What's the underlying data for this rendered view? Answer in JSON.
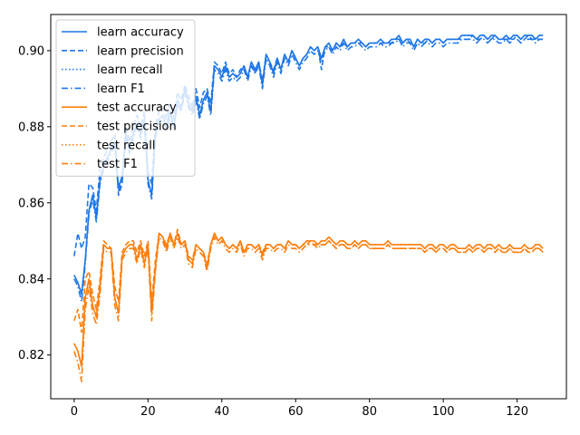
{
  "chart_data": {
    "type": "line",
    "title": "",
    "xlabel": "",
    "ylabel": "",
    "xlim": [
      -6.35,
      133.35
    ],
    "ylim": [
      0.8085,
      0.9095
    ],
    "xticks": [
      0,
      20,
      40,
      60,
      80,
      100,
      120
    ],
    "yticks": [
      0.82,
      0.84,
      0.86,
      0.88,
      0.9
    ],
    "ytick_labels": [
      "0.82",
      "0.84",
      "0.86",
      "0.88",
      "0.90"
    ],
    "grid": false,
    "legend_position": "top-left",
    "colors": {
      "learn": "#1f77e8",
      "test": "#ff7f0e"
    },
    "x_start": 0,
    "series": [
      {
        "name": "learn accuracy",
        "group": "learn",
        "style": "solid",
        "values": [
          0.841,
          0.839,
          0.836,
          0.845,
          0.858,
          0.862,
          0.856,
          0.866,
          0.87,
          0.872,
          0.874,
          0.876,
          0.864,
          0.867,
          0.878,
          0.874,
          0.878,
          0.881,
          0.878,
          0.882,
          0.866,
          0.862,
          0.878,
          0.882,
          0.883,
          0.88,
          0.884,
          0.88,
          0.887,
          0.885,
          0.89,
          0.886,
          0.884,
          0.888,
          0.883,
          0.887,
          0.889,
          0.884,
          0.896,
          0.895,
          0.893,
          0.896,
          0.893,
          0.894,
          0.893,
          0.894,
          0.896,
          0.893,
          0.897,
          0.895,
          0.897,
          0.891,
          0.899,
          0.897,
          0.894,
          0.898,
          0.895,
          0.899,
          0.897,
          0.9,
          0.898,
          0.896,
          0.898,
          0.899,
          0.901,
          0.9,
          0.901,
          0.898,
          0.901,
          0.902,
          0.9,
          0.902,
          0.901,
          0.903,
          0.901,
          0.902,
          0.902,
          0.903,
          0.902,
          0.901,
          0.902,
          0.902,
          0.902,
          0.903,
          0.902,
          0.902,
          0.903,
          0.903,
          0.904,
          0.902,
          0.903,
          0.903,
          0.901,
          0.903,
          0.902,
          0.903,
          0.903,
          0.902,
          0.903,
          0.903,
          0.902,
          0.903,
          0.903,
          0.903,
          0.903,
          0.904,
          0.904,
          0.904,
          0.904,
          0.903,
          0.904,
          0.904,
          0.903,
          0.904,
          0.904,
          0.903,
          0.903,
          0.904,
          0.903,
          0.904,
          0.904,
          0.903,
          0.904,
          0.904,
          0.904,
          0.903,
          0.904,
          0.904
        ]
      },
      {
        "name": "learn precision",
        "group": "learn",
        "style": "dashed",
        "values": [
          0.846,
          0.852,
          0.848,
          0.851,
          0.865,
          0.864,
          0.858,
          0.869,
          0.872,
          0.874,
          0.876,
          0.878,
          0.862,
          0.865,
          0.88,
          0.876,
          0.88,
          0.883,
          0.88,
          0.884,
          0.868,
          0.865,
          0.88,
          0.884,
          0.885,
          0.882,
          0.886,
          0.882,
          0.889,
          0.887,
          0.891,
          0.888,
          0.885,
          0.89,
          0.885,
          0.889,
          0.89,
          0.886,
          0.897,
          0.896,
          0.894,
          0.897,
          0.894,
          0.895,
          0.893,
          0.895,
          0.896,
          0.893,
          0.897,
          0.894,
          0.897,
          0.892,
          0.899,
          0.897,
          0.895,
          0.898,
          0.895,
          0.899,
          0.897,
          0.9,
          0.898,
          0.896,
          0.898,
          0.899,
          0.901,
          0.9,
          0.901,
          0.895,
          0.901,
          0.901,
          0.9,
          0.902,
          0.901,
          0.902,
          0.901,
          0.902,
          0.902,
          0.902,
          0.902,
          0.901,
          0.902,
          0.902,
          0.902,
          0.902,
          0.902,
          0.902,
          0.902,
          0.903,
          0.903,
          0.902,
          0.903,
          0.902,
          0.901,
          0.903,
          0.902,
          0.902,
          0.903,
          0.902,
          0.903,
          0.903,
          0.902,
          0.903,
          0.903,
          0.903,
          0.903,
          0.903,
          0.903,
          0.903,
          0.904,
          0.903,
          0.903,
          0.904,
          0.903,
          0.903,
          0.904,
          0.903,
          0.903,
          0.903,
          0.903,
          0.903,
          0.904,
          0.903,
          0.903,
          0.904,
          0.903,
          0.903,
          0.903,
          0.903
        ]
      },
      {
        "name": "learn recall",
        "group": "learn",
        "style": "dotted",
        "values": [
          0.841,
          0.839,
          0.836,
          0.845,
          0.858,
          0.862,
          0.856,
          0.866,
          0.87,
          0.872,
          0.874,
          0.876,
          0.864,
          0.867,
          0.878,
          0.874,
          0.878,
          0.881,
          0.878,
          0.882,
          0.866,
          0.862,
          0.878,
          0.882,
          0.883,
          0.88,
          0.884,
          0.88,
          0.887,
          0.885,
          0.89,
          0.886,
          0.884,
          0.888,
          0.883,
          0.887,
          0.889,
          0.884,
          0.896,
          0.895,
          0.893,
          0.896,
          0.893,
          0.894,
          0.893,
          0.894,
          0.896,
          0.893,
          0.897,
          0.895,
          0.897,
          0.891,
          0.899,
          0.897,
          0.894,
          0.898,
          0.895,
          0.899,
          0.897,
          0.9,
          0.898,
          0.896,
          0.898,
          0.899,
          0.901,
          0.9,
          0.901,
          0.898,
          0.901,
          0.902,
          0.9,
          0.902,
          0.901,
          0.903,
          0.901,
          0.902,
          0.902,
          0.903,
          0.902,
          0.901,
          0.902,
          0.902,
          0.902,
          0.903,
          0.902,
          0.902,
          0.903,
          0.903,
          0.904,
          0.902,
          0.903,
          0.903,
          0.901,
          0.903,
          0.902,
          0.903,
          0.903,
          0.902,
          0.903,
          0.903,
          0.902,
          0.903,
          0.903,
          0.903,
          0.903,
          0.904,
          0.904,
          0.904,
          0.904,
          0.903,
          0.904,
          0.904,
          0.903,
          0.904,
          0.904,
          0.903,
          0.903,
          0.904,
          0.903,
          0.904,
          0.904,
          0.903,
          0.904,
          0.904,
          0.904,
          0.903,
          0.904,
          0.904
        ]
      },
      {
        "name": "learn F1",
        "group": "learn",
        "style": "dashdot",
        "values": [
          0.84,
          0.838,
          0.834,
          0.844,
          0.857,
          0.861,
          0.855,
          0.865,
          0.869,
          0.871,
          0.873,
          0.875,
          0.863,
          0.866,
          0.877,
          0.873,
          0.877,
          0.88,
          0.877,
          0.881,
          0.865,
          0.861,
          0.877,
          0.881,
          0.882,
          0.879,
          0.883,
          0.879,
          0.886,
          0.884,
          0.889,
          0.885,
          0.883,
          0.887,
          0.882,
          0.886,
          0.888,
          0.883,
          0.895,
          0.894,
          0.892,
          0.895,
          0.892,
          0.893,
          0.892,
          0.893,
          0.895,
          0.892,
          0.896,
          0.894,
          0.896,
          0.89,
          0.898,
          0.896,
          0.893,
          0.897,
          0.894,
          0.898,
          0.896,
          0.899,
          0.897,
          0.895,
          0.897,
          0.898,
          0.9,
          0.899,
          0.9,
          0.897,
          0.9,
          0.901,
          0.899,
          0.901,
          0.9,
          0.902,
          0.9,
          0.901,
          0.901,
          0.902,
          0.901,
          0.9,
          0.901,
          0.901,
          0.901,
          0.902,
          0.901,
          0.901,
          0.902,
          0.902,
          0.903,
          0.901,
          0.902,
          0.902,
          0.9,
          0.902,
          0.901,
          0.902,
          0.902,
          0.901,
          0.902,
          0.902,
          0.901,
          0.902,
          0.902,
          0.902,
          0.902,
          0.903,
          0.903,
          0.903,
          0.903,
          0.902,
          0.903,
          0.903,
          0.902,
          0.903,
          0.903,
          0.902,
          0.902,
          0.903,
          0.902,
          0.903,
          0.903,
          0.902,
          0.903,
          0.903,
          0.903,
          0.902,
          0.903,
          0.903
        ]
      },
      {
        "name": "test accuracy",
        "group": "test",
        "style": "solid",
        "values": [
          0.823,
          0.821,
          0.817,
          0.835,
          0.84,
          0.833,
          0.83,
          0.838,
          0.849,
          0.848,
          0.848,
          0.835,
          0.831,
          0.846,
          0.848,
          0.849,
          0.849,
          0.845,
          0.849,
          0.844,
          0.849,
          0.831,
          0.843,
          0.852,
          0.851,
          0.848,
          0.852,
          0.849,
          0.852,
          0.849,
          0.85,
          0.845,
          0.844,
          0.849,
          0.848,
          0.847,
          0.843,
          0.849,
          0.852,
          0.85,
          0.851,
          0.849,
          0.848,
          0.849,
          0.848,
          0.85,
          0.847,
          0.849,
          0.849,
          0.848,
          0.849,
          0.846,
          0.849,
          0.849,
          0.848,
          0.849,
          0.849,
          0.848,
          0.85,
          0.849,
          0.849,
          0.848,
          0.849,
          0.85,
          0.85,
          0.85,
          0.849,
          0.85,
          0.85,
          0.851,
          0.85,
          0.849,
          0.85,
          0.85,
          0.849,
          0.849,
          0.85,
          0.849,
          0.85,
          0.85,
          0.849,
          0.849,
          0.849,
          0.849,
          0.849,
          0.85,
          0.849,
          0.849,
          0.849,
          0.849,
          0.849,
          0.849,
          0.849,
          0.849,
          0.849,
          0.848,
          0.849,
          0.849,
          0.848,
          0.849,
          0.849,
          0.848,
          0.849,
          0.849,
          0.848,
          0.848,
          0.848,
          0.849,
          0.848,
          0.849,
          0.849,
          0.848,
          0.849,
          0.849,
          0.848,
          0.849,
          0.848,
          0.848,
          0.849,
          0.848,
          0.848,
          0.848,
          0.849,
          0.848,
          0.848,
          0.849,
          0.849,
          0.848
        ]
      },
      {
        "name": "test precision",
        "group": "test",
        "style": "dashed",
        "values": [
          0.829,
          0.832,
          0.826,
          0.84,
          0.842,
          0.836,
          0.832,
          0.84,
          0.85,
          0.849,
          0.848,
          0.838,
          0.834,
          0.847,
          0.849,
          0.85,
          0.85,
          0.847,
          0.85,
          0.846,
          0.85,
          0.834,
          0.845,
          0.852,
          0.851,
          0.849,
          0.852,
          0.849,
          0.853,
          0.849,
          0.85,
          0.846,
          0.845,
          0.849,
          0.848,
          0.847,
          0.844,
          0.849,
          0.852,
          0.85,
          0.851,
          0.849,
          0.848,
          0.849,
          0.848,
          0.85,
          0.847,
          0.849,
          0.849,
          0.848,
          0.849,
          0.847,
          0.849,
          0.849,
          0.848,
          0.849,
          0.849,
          0.848,
          0.85,
          0.849,
          0.849,
          0.848,
          0.849,
          0.849,
          0.85,
          0.849,
          0.849,
          0.849,
          0.849,
          0.85,
          0.849,
          0.848,
          0.849,
          0.849,
          0.848,
          0.848,
          0.849,
          0.848,
          0.849,
          0.849,
          0.848,
          0.848,
          0.848,
          0.848,
          0.848,
          0.849,
          0.848,
          0.848,
          0.848,
          0.848,
          0.848,
          0.848,
          0.848,
          0.848,
          0.848,
          0.847,
          0.848,
          0.848,
          0.847,
          0.848,
          0.848,
          0.847,
          0.848,
          0.848,
          0.847,
          0.847,
          0.847,
          0.848,
          0.847,
          0.848,
          0.848,
          0.847,
          0.848,
          0.848,
          0.847,
          0.848,
          0.847,
          0.847,
          0.848,
          0.847,
          0.847,
          0.847,
          0.848,
          0.847,
          0.847,
          0.848,
          0.848,
          0.847
        ]
      },
      {
        "name": "test recall",
        "group": "test",
        "style": "dotted",
        "values": [
          0.823,
          0.821,
          0.817,
          0.835,
          0.84,
          0.833,
          0.83,
          0.838,
          0.849,
          0.848,
          0.848,
          0.835,
          0.831,
          0.846,
          0.848,
          0.849,
          0.849,
          0.845,
          0.849,
          0.844,
          0.849,
          0.831,
          0.843,
          0.852,
          0.851,
          0.848,
          0.852,
          0.849,
          0.852,
          0.849,
          0.85,
          0.845,
          0.844,
          0.849,
          0.848,
          0.847,
          0.843,
          0.849,
          0.852,
          0.85,
          0.851,
          0.849,
          0.848,
          0.849,
          0.848,
          0.85,
          0.847,
          0.849,
          0.849,
          0.848,
          0.849,
          0.846,
          0.849,
          0.849,
          0.848,
          0.849,
          0.849,
          0.848,
          0.85,
          0.849,
          0.849,
          0.848,
          0.849,
          0.85,
          0.85,
          0.85,
          0.849,
          0.85,
          0.85,
          0.851,
          0.85,
          0.849,
          0.85,
          0.85,
          0.849,
          0.849,
          0.85,
          0.849,
          0.85,
          0.85,
          0.849,
          0.849,
          0.849,
          0.849,
          0.849,
          0.85,
          0.849,
          0.849,
          0.849,
          0.849,
          0.849,
          0.849,
          0.849,
          0.849,
          0.849,
          0.848,
          0.849,
          0.849,
          0.848,
          0.849,
          0.849,
          0.848,
          0.849,
          0.849,
          0.848,
          0.848,
          0.848,
          0.849,
          0.848,
          0.849,
          0.849,
          0.848,
          0.849,
          0.849,
          0.848,
          0.849,
          0.848,
          0.848,
          0.849,
          0.848,
          0.848,
          0.848,
          0.849,
          0.848,
          0.848,
          0.849,
          0.849,
          0.848
        ]
      },
      {
        "name": "test F1",
        "group": "test",
        "style": "dashdot",
        "values": [
          0.821,
          0.818,
          0.813,
          0.832,
          0.838,
          0.831,
          0.828,
          0.836,
          0.848,
          0.847,
          0.847,
          0.833,
          0.829,
          0.845,
          0.847,
          0.848,
          0.848,
          0.844,
          0.848,
          0.843,
          0.848,
          0.829,
          0.842,
          0.851,
          0.85,
          0.847,
          0.851,
          0.848,
          0.851,
          0.848,
          0.849,
          0.844,
          0.843,
          0.848,
          0.847,
          0.846,
          0.842,
          0.848,
          0.851,
          0.849,
          0.85,
          0.848,
          0.847,
          0.848,
          0.847,
          0.849,
          0.846,
          0.848,
          0.848,
          0.847,
          0.848,
          0.845,
          0.848,
          0.848,
          0.847,
          0.848,
          0.848,
          0.847,
          0.849,
          0.848,
          0.848,
          0.847,
          0.848,
          0.849,
          0.849,
          0.849,
          0.848,
          0.849,
          0.849,
          0.85,
          0.849,
          0.848,
          0.849,
          0.849,
          0.848,
          0.848,
          0.849,
          0.848,
          0.849,
          0.849,
          0.848,
          0.848,
          0.848,
          0.848,
          0.848,
          0.849,
          0.848,
          0.848,
          0.848,
          0.848,
          0.848,
          0.848,
          0.848,
          0.848,
          0.848,
          0.847,
          0.848,
          0.848,
          0.847,
          0.848,
          0.848,
          0.847,
          0.848,
          0.848,
          0.847,
          0.847,
          0.847,
          0.848,
          0.847,
          0.848,
          0.848,
          0.847,
          0.848,
          0.848,
          0.847,
          0.848,
          0.847,
          0.847,
          0.848,
          0.847,
          0.847,
          0.847,
          0.848,
          0.847,
          0.847,
          0.848,
          0.848,
          0.847
        ]
      }
    ]
  }
}
